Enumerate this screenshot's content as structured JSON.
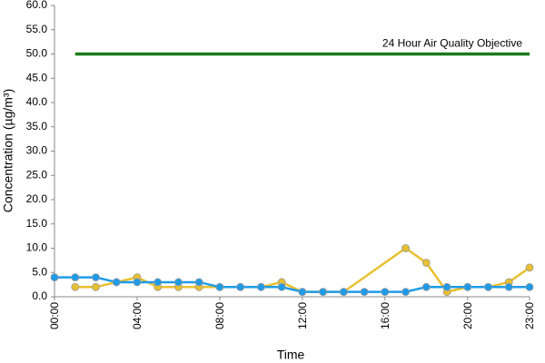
{
  "chart_data": {
    "type": "line",
    "x_label": "Time",
    "y_label": "Concentration (µg/m³)",
    "annotation": "24 Hour Air Quality Objective",
    "x": [
      0,
      1,
      2,
      3,
      4,
      5,
      6,
      7,
      8,
      9,
      10,
      11,
      12,
      13,
      14,
      15,
      16,
      17,
      18,
      19,
      20,
      21,
      22,
      23
    ],
    "xlim": [
      0,
      23
    ],
    "xticks": [
      {
        "value": 0,
        "label": "00:00"
      },
      {
        "value": 4,
        "label": "04:00"
      },
      {
        "value": 8,
        "label": "08:00"
      },
      {
        "value": 12,
        "label": "12:00"
      },
      {
        "value": 16,
        "label": "16:00"
      },
      {
        "value": 20,
        "label": "20:00"
      },
      {
        "value": 23,
        "label": "23:00"
      }
    ],
    "ylim": [
      0,
      60
    ],
    "yticks": [
      {
        "value": 0,
        "label": "0.0"
      },
      {
        "value": 5,
        "label": "5.0"
      },
      {
        "value": 10,
        "label": "10.0"
      },
      {
        "value": 15,
        "label": "15.0"
      },
      {
        "value": 20,
        "label": "20.0"
      },
      {
        "value": 25,
        "label": "25.0"
      },
      {
        "value": 30,
        "label": "30.0"
      },
      {
        "value": 35,
        "label": "35.0"
      },
      {
        "value": 40,
        "label": "40.0"
      },
      {
        "value": 45,
        "label": "45.0"
      },
      {
        "value": 50,
        "label": "50.0"
      },
      {
        "value": 55,
        "label": "55.0"
      },
      {
        "value": 60,
        "label": "60.0"
      }
    ],
    "series": [
      {
        "color": "#1e9be8",
        "markers": true,
        "values": [
          4,
          4,
          4,
          3,
          3,
          3,
          3,
          3,
          2,
          2,
          2,
          2,
          1,
          1,
          1,
          1,
          1,
          1,
          2,
          2,
          2,
          2,
          2,
          2
        ]
      },
      {
        "color": "#e8c030",
        "markers": true,
        "x": [
          1,
          2,
          3,
          4,
          5,
          6,
          7,
          8,
          9,
          10,
          11,
          12,
          13,
          14,
          17,
          18,
          19,
          20,
          21,
          22,
          23
        ],
        "values": [
          2,
          2,
          3,
          4,
          2,
          2,
          2,
          2,
          2,
          2,
          3,
          1,
          1,
          1,
          10,
          7,
          1,
          2,
          2,
          3,
          6
        ]
      },
      {
        "color": "#1a7a1a",
        "markers": false,
        "x": [
          1,
          23
        ],
        "values": [
          50,
          50
        ]
      }
    ]
  }
}
